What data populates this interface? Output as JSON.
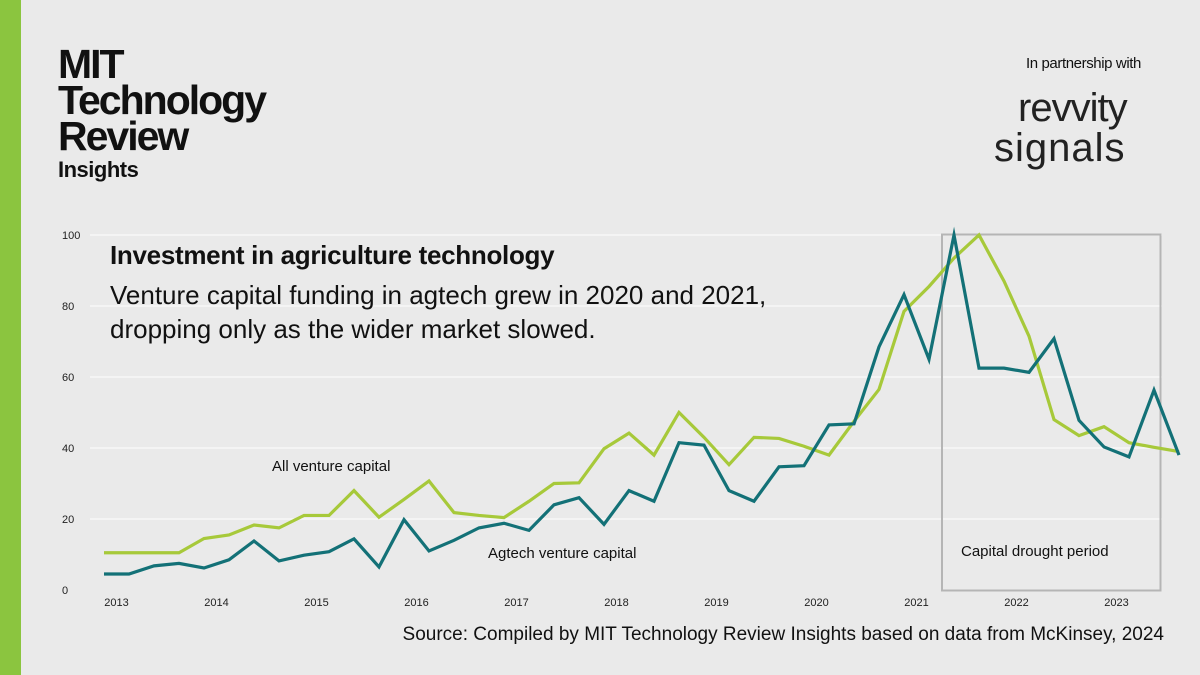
{
  "brand": {
    "logo_lines": [
      "MIT",
      "Technology",
      "Review"
    ],
    "logo_sub": "Insights",
    "partner_label": "In partnership with",
    "partner_logo_line1": "revvity",
    "partner_logo_line2": "signals"
  },
  "colors": {
    "accent": "#8bc53f",
    "all_vc": "#a7c93a",
    "agtech": "#137177"
  },
  "chart_data": {
    "type": "line",
    "title": "Investment in agriculture technology",
    "subtitle": "Venture capital funding in agtech grew in 2020 and 2021, dropping only as the wider market slowed.",
    "xlabel": "",
    "ylabel": "",
    "ylim": [
      0,
      100
    ],
    "yticks": [
      0,
      20,
      40,
      60,
      80,
      100
    ],
    "grid": true,
    "x_ticks": [
      "2013",
      "2014",
      "2015",
      "2016",
      "2017",
      "2018",
      "2019",
      "2020",
      "2021",
      "2022",
      "2023"
    ],
    "x_tick_positions": [
      0.5,
      4.5,
      8.5,
      12.5,
      16.5,
      20.5,
      24.5,
      28.5,
      32.5,
      36.5,
      40.5
    ],
    "x_range": [
      0,
      42
    ],
    "series": [
      {
        "name": "All venture capital",
        "color": "#a7c93a",
        "values": [
          10.5,
          10.5,
          10.5,
          10.5,
          14.5,
          15.5,
          18.3,
          17.5,
          21,
          21,
          28,
          20.5,
          25.5,
          30.7,
          21.8,
          21,
          20.4,
          25,
          30,
          30.2,
          39.8,
          44.2,
          38,
          50,
          43,
          35.3,
          43,
          42.7,
          40.5,
          38,
          47.5,
          56.5,
          78.5,
          85.5,
          93.5,
          100,
          87,
          71.5,
          48,
          43.5,
          46,
          41.5,
          40.2,
          39
        ]
      },
      {
        "name": "Agtech venture capital",
        "color": "#137177",
        "values": [
          4.5,
          4.5,
          6.8,
          7.5,
          6.2,
          8.5,
          13.8,
          8.2,
          9.8,
          10.8,
          14.4,
          6.5,
          19.8,
          11,
          14,
          17.5,
          18.8,
          16.8,
          24,
          26,
          18.5,
          28,
          25,
          41.5,
          40.8,
          28,
          25,
          34.7,
          35,
          46.5,
          46.8,
          68.5,
          83.2,
          65,
          100,
          62.5,
          62.5,
          61.3,
          70.8,
          47.8,
          40.3,
          37.5,
          56.3,
          38
        ]
      }
    ],
    "annotations": [
      {
        "text": "All venture capital",
        "target": "all_vc"
      },
      {
        "text": "Agtech venture capital",
        "target": "agtech"
      },
      {
        "text": "Capital drought period",
        "target": "drought"
      }
    ],
    "highlight_region": {
      "label": "Capital drought period",
      "x_start": 33.5,
      "x_end": 42
    }
  },
  "source": "Source: Compiled by MIT Technology Review Insights based on data from McKinsey, 2024"
}
